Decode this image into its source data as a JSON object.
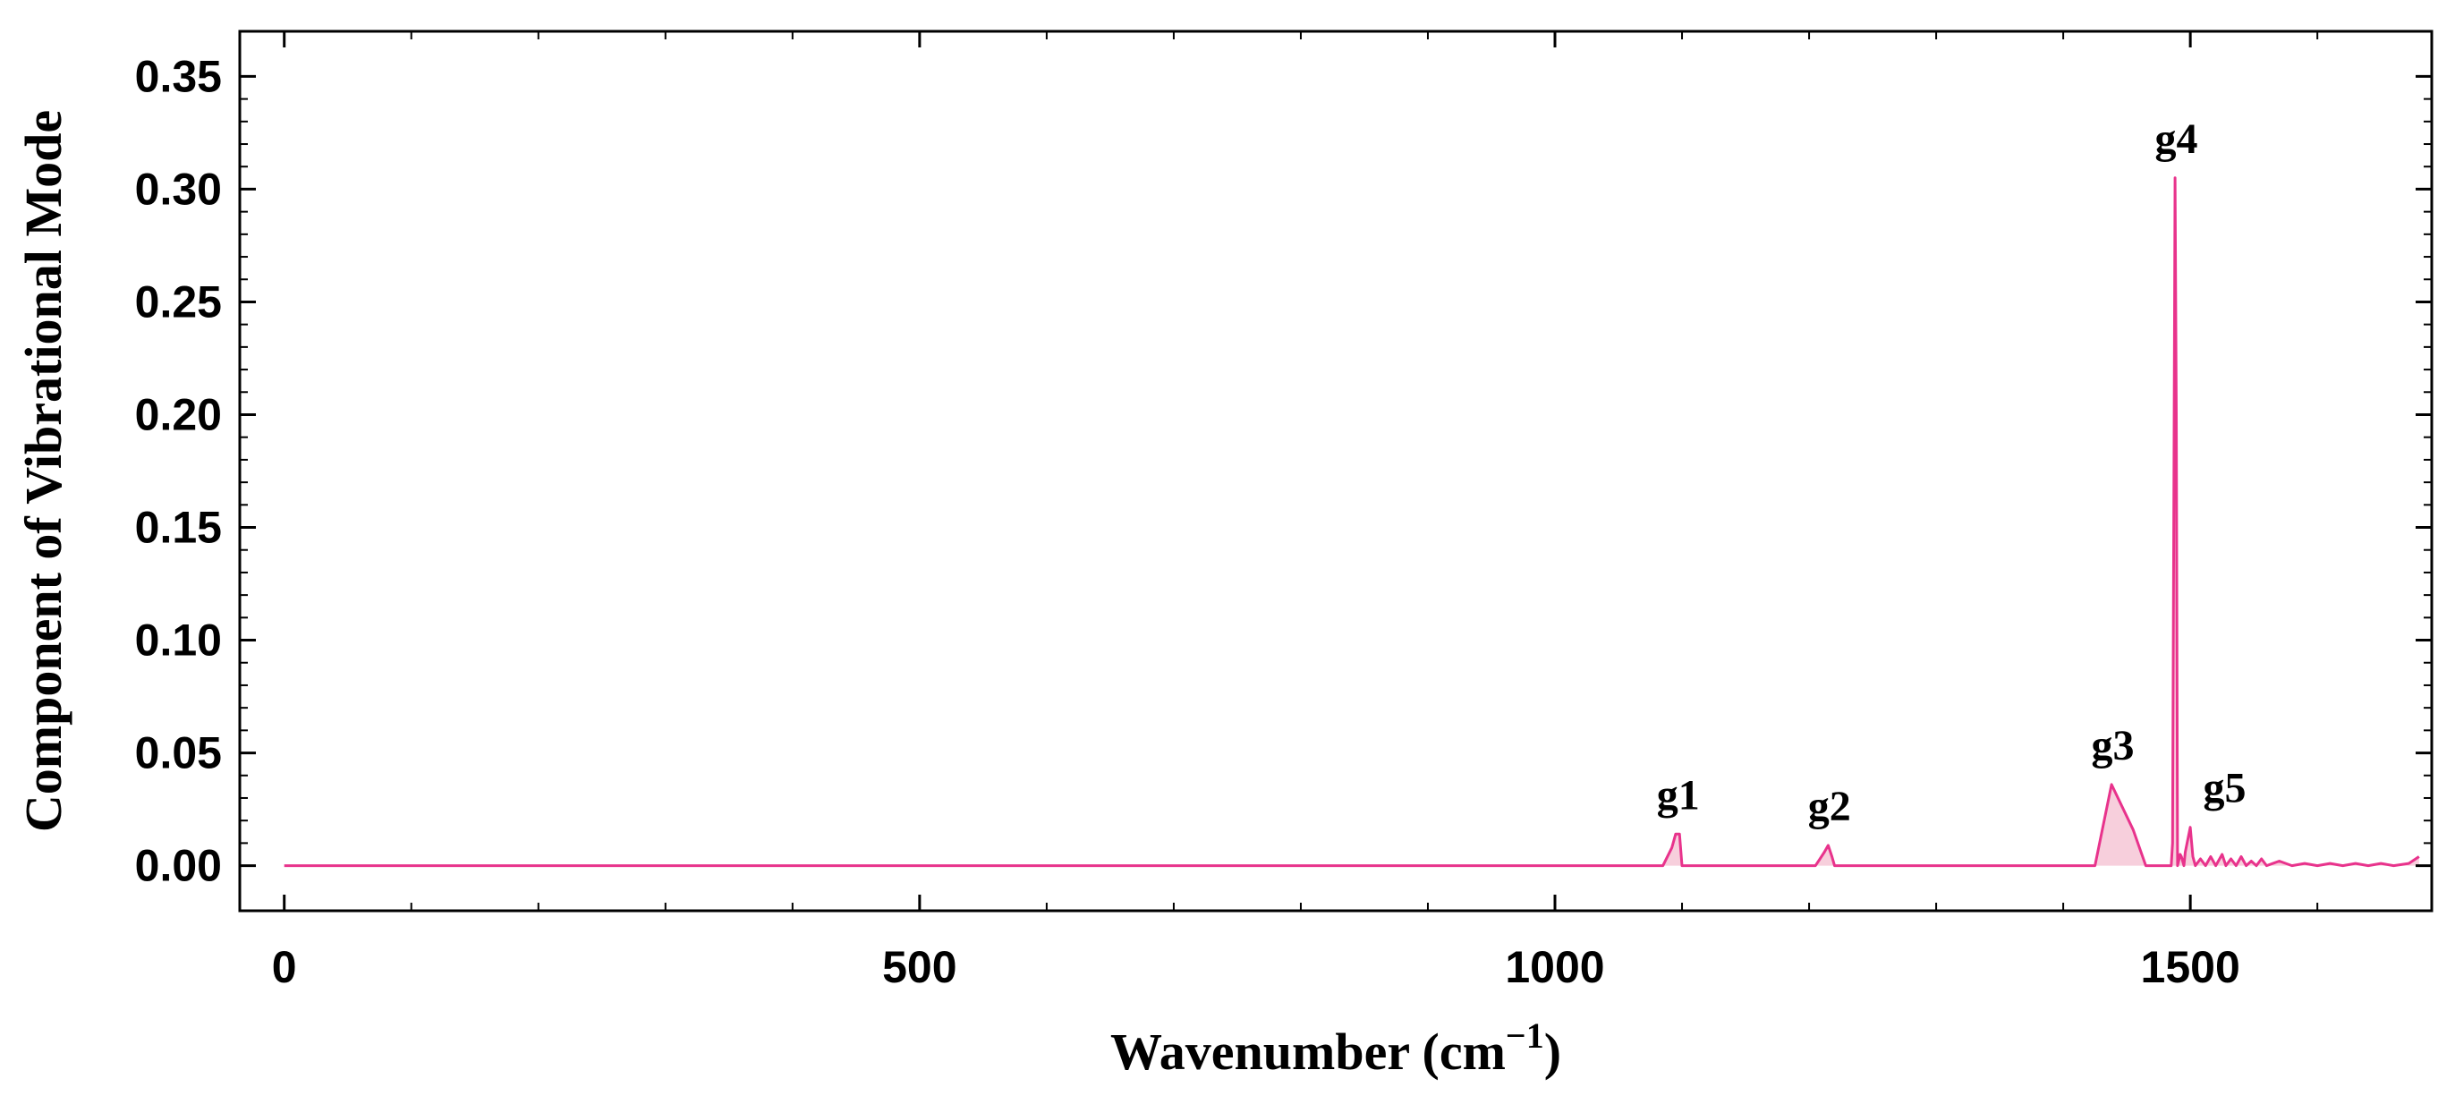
{
  "chart_data": {
    "type": "area",
    "xlabel": "Wavenumber (cm",
    "xlabel_superscript": "−1",
    "xlabel_close": ")",
    "ylabel": "Component of Vibrational Mode",
    "xlim": [
      -35,
      1690
    ],
    "ylim": [
      -0.02,
      0.37
    ],
    "x_ticks": [
      0,
      500,
      1000,
      1500
    ],
    "x_tick_labels": [
      "0",
      "500",
      "1000",
      "1500"
    ],
    "y_ticks": [
      0.0,
      0.05,
      0.1,
      0.15,
      0.2,
      0.25,
      0.3,
      0.35
    ],
    "y_tick_labels": [
      "0.00",
      "0.05",
      "0.10",
      "0.15",
      "0.20",
      "0.25",
      "0.30",
      "0.35"
    ],
    "line_color": "#e8338c",
    "fill_color": "#f7cfdc",
    "series": [
      {
        "x": [
          0,
          1085,
          1092,
          1095,
          1098,
          1100,
          1205,
          1212,
          1215,
          1218,
          1220,
          1425,
          1438,
          1455,
          1465,
          1485,
          1486,
          1488,
          1489,
          1490,
          1492,
          1493,
          1495,
          1496,
          1500,
          1502,
          1504,
          1508,
          1512,
          1516,
          1520,
          1525,
          1528,
          1532,
          1536,
          1540,
          1544,
          1548,
          1552,
          1556,
          1560,
          1570,
          1580,
          1590,
          1600,
          1610,
          1620,
          1630,
          1640,
          1650,
          1660,
          1672,
          1680
        ],
        "y": [
          0,
          0,
          0.008,
          0.014,
          0.014,
          0,
          0,
          0.006,
          0.009,
          0.004,
          0,
          0,
          0.036,
          0.016,
          0,
          0,
          0.01,
          0.305,
          0.2,
          0,
          0.005,
          0.004,
          0,
          0.006,
          0.017,
          0.004,
          0,
          0.003,
          0,
          0.004,
          0,
          0.005,
          0,
          0.003,
          0,
          0.004,
          0,
          0.002,
          0,
          0.003,
          0,
          0.002,
          0,
          0.001,
          0,
          0.001,
          0,
          0.001,
          0,
          0.001,
          0,
          0.001,
          0.004
        ]
      }
    ],
    "annotations": [
      {
        "text": "g1",
        "x": 1097,
        "y": 0.014
      },
      {
        "text": "g2",
        "x": 1216,
        "y": 0.009
      },
      {
        "text": "g3",
        "x": 1439,
        "y": 0.036
      },
      {
        "text": "g4",
        "x": 1489,
        "y": 0.305
      },
      {
        "text": "g5",
        "x": 1527,
        "y": 0.017
      }
    ]
  }
}
